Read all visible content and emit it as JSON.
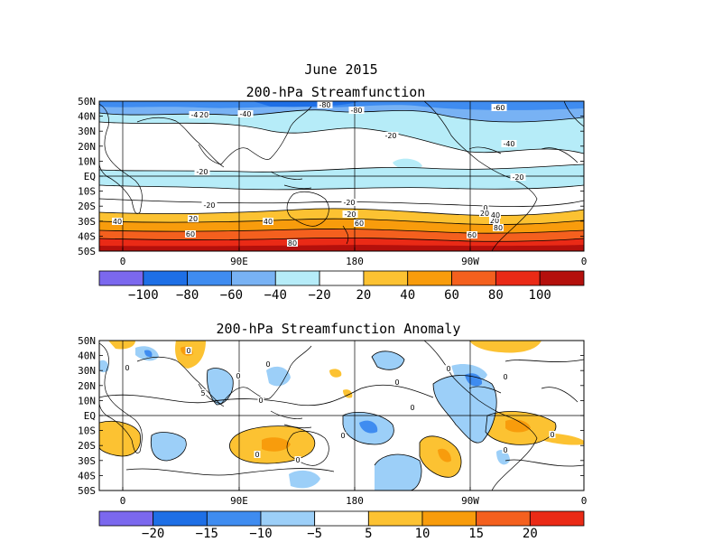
{
  "figure_title": "June 2015",
  "chart_data": [
    {
      "type": "heatmap",
      "title": "200-hPa Streamfunction",
      "x_ticks": [
        "0",
        "90E",
        "180",
        "90W",
        "0"
      ],
      "y_ticks": [
        "50N",
        "40N",
        "30N",
        "20N",
        "10N",
        "EQ",
        "10S",
        "20S",
        "30S",
        "40S",
        "50S"
      ],
      "colorbar": {
        "labels": [
          "-100",
          "-80",
          "-60",
          "-40",
          "-20",
          "20",
          "40",
          "60",
          "80",
          "100"
        ],
        "colors": [
          "#7b68ee",
          "#1e6fe6",
          "#3f8cf0",
          "#78b2f4",
          "#b6ecf8",
          "#ffffff",
          "#fcc232",
          "#f89c0c",
          "#f4601e",
          "#ea2a16",
          "#b4100c"
        ]
      },
      "contour_labels": [
        "-80",
        "-80",
        "-60",
        "-40",
        "-20",
        "-40",
        "-40",
        "-20",
        "-20",
        "-20",
        "-20",
        "-20",
        "0",
        "0",
        "20",
        "20",
        "20",
        "20",
        "40",
        "40",
        "40",
        "60",
        "60",
        "60",
        "80",
        "80"
      ]
    },
    {
      "type": "heatmap",
      "title": "200-hPa Streamfunction Anomaly",
      "x_ticks": [
        "0",
        "90E",
        "180",
        "90W",
        "0"
      ],
      "y_ticks": [
        "50N",
        "40N",
        "30N",
        "20N",
        "10N",
        "EQ",
        "10S",
        "20S",
        "30S",
        "40S",
        "50S"
      ],
      "colorbar": {
        "labels": [
          "-20",
          "-15",
          "-10",
          "-5",
          "5",
          "10",
          "15",
          "20"
        ],
        "colors": [
          "#7b68ee",
          "#1e6fe6",
          "#3f8cf0",
          "#9ccff8",
          "#ffffff",
          "#fcc232",
          "#f89c0c",
          "#f4601e",
          "#ea2a16"
        ]
      },
      "contour_labels": [
        "0",
        "0",
        "0",
        "0",
        "0",
        "0",
        "0",
        "0",
        "0",
        "0",
        "0",
        "0",
        "0",
        "0",
        "5"
      ]
    }
  ]
}
